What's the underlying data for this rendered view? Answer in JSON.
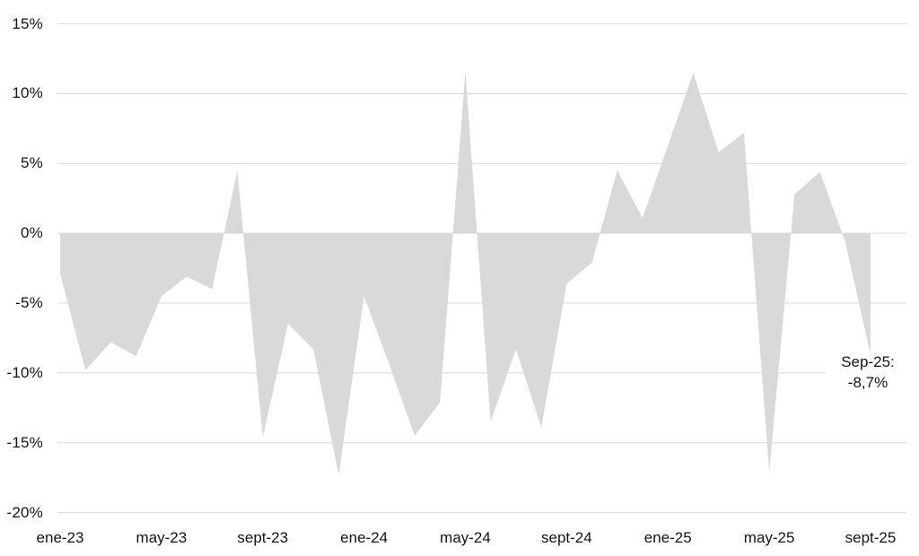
{
  "chart_data": {
    "type": "area",
    "title": "",
    "xlabel": "",
    "ylabel": "",
    "x": [
      "ene-23",
      "feb-23",
      "mar-23",
      "abr-23",
      "may-23",
      "jun-23",
      "jul-23",
      "ago-23",
      "sept-23",
      "oct-23",
      "nov-23",
      "dic-23",
      "ene-24",
      "feb-24",
      "mar-24",
      "abr-24",
      "may-24",
      "jun-24",
      "jul-24",
      "ago-24",
      "sept-24",
      "oct-24",
      "nov-24",
      "dic-24",
      "ene-25",
      "feb-25",
      "mar-25",
      "abr-25",
      "may-25",
      "jun-25",
      "jul-25",
      "ago-25",
      "sept-25"
    ],
    "values": [
      -2.9,
      -9.8,
      -7.8,
      -8.8,
      -4.5,
      -3.1,
      -4.0,
      4.5,
      -14.6,
      -6.5,
      -8.3,
      -17.3,
      -4.5,
      -9.4,
      -14.5,
      -12.1,
      11.6,
      -13.5,
      -8.3,
      -13.9,
      -3.6,
      -2.1,
      4.5,
      1.1,
      6.3,
      11.5,
      5.8,
      7.2,
      -17.1,
      2.8,
      4.4,
      -0.6,
      -8.7
    ],
    "x_tick_labels": [
      "ene-23",
      "may-23",
      "sept-23",
      "ene-24",
      "may-24",
      "sept-24",
      "ene-25",
      "may-25",
      "sept-25"
    ],
    "x_tick_step": 4,
    "y_ticks": [
      15,
      10,
      5,
      0,
      -5,
      -10,
      -15,
      -20
    ],
    "y_tick_labels": [
      "15%",
      "10%",
      "5%",
      "0%",
      "-5%",
      "-10%",
      "-15%",
      "-20%"
    ],
    "ylim": [
      -20,
      15
    ],
    "grid": "horizontal",
    "legend": "none",
    "baseline": 0,
    "fill_color": "#d9d9d9",
    "gridline_color": "#d9d9d9",
    "label_color": "#141414",
    "annotation": {
      "line1": "Sep-25:",
      "line2": "-8,7%",
      "target": "sept-25",
      "value": -8.7
    }
  }
}
